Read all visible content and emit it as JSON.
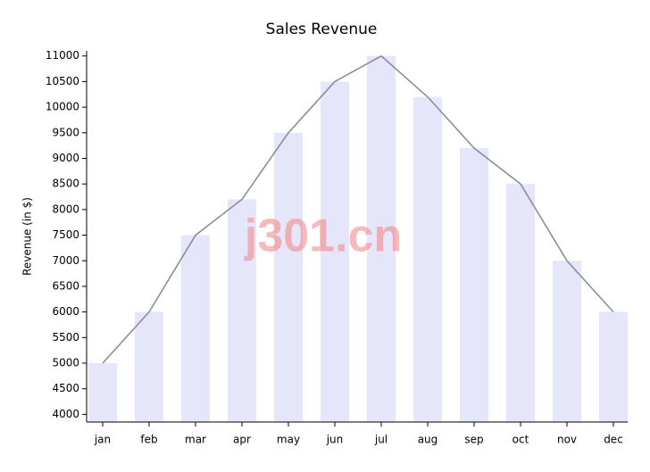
{
  "chart_data": {
    "type": "bar-line",
    "title": "Sales Revenue",
    "y_label": "Revenue (in $)",
    "watermark": "j301.cn",
    "categories": [
      "jan",
      "feb",
      "mar",
      "apr",
      "may",
      "jun",
      "jul",
      "aug",
      "sep",
      "oct",
      "nov",
      "dec"
    ],
    "values": [
      5000,
      6000,
      7500,
      8200,
      9500,
      10500,
      11000,
      10200,
      9200,
      8500,
      7000,
      6000
    ],
    "bar_color": "#e6e6fa",
    "line_color": "#8a8f99",
    "ylim": [
      3850,
      11100
    ],
    "yticks": [
      4000,
      4500,
      5000,
      5500,
      6000,
      6500,
      7000,
      7500,
      8000,
      8500,
      9000,
      9500,
      10000,
      10500,
      11000
    ],
    "grid": false
  }
}
